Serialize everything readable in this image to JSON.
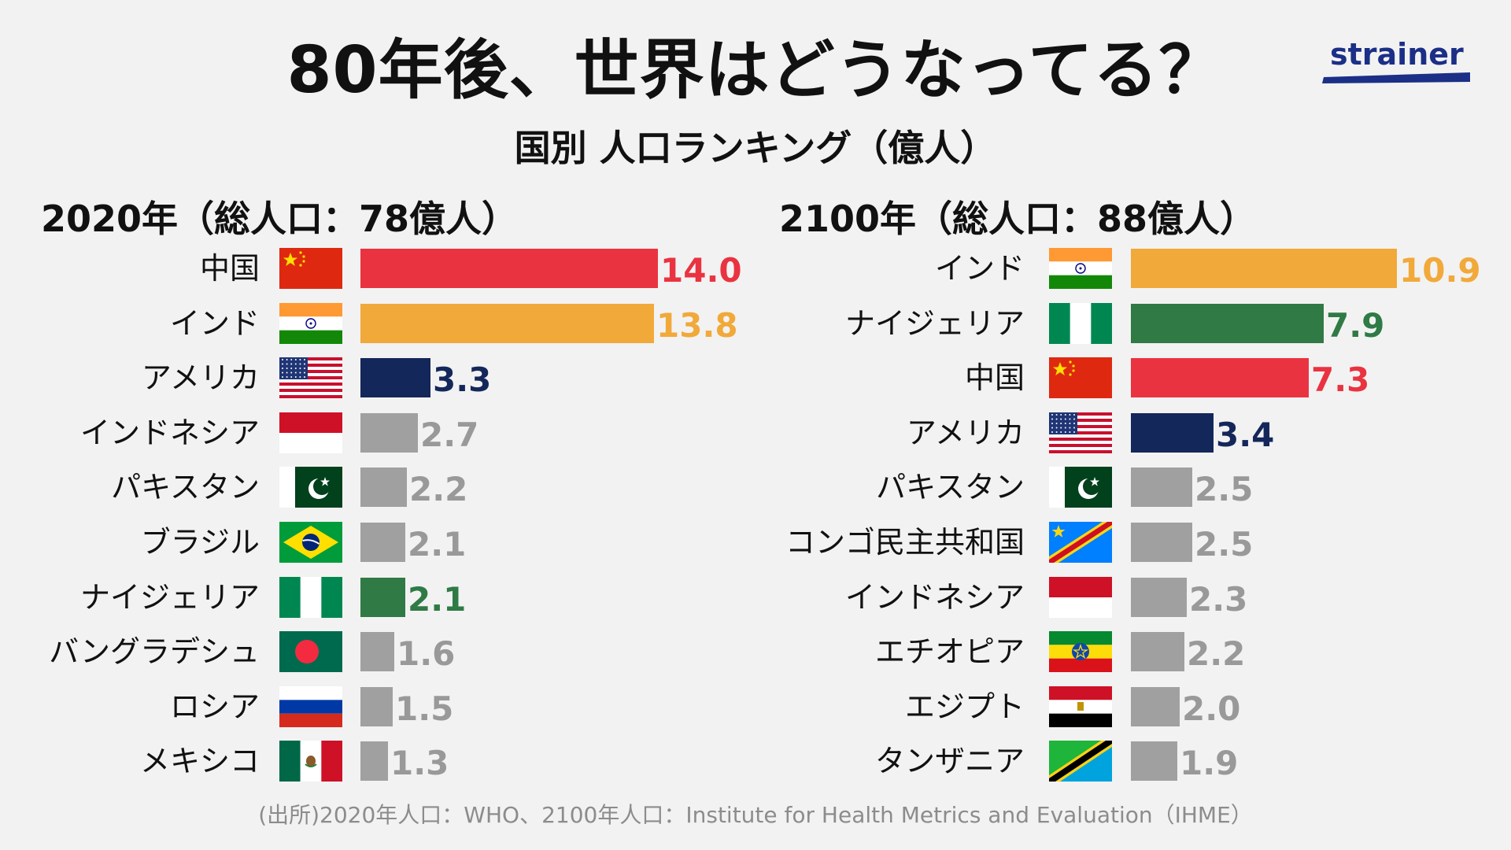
{
  "title": "80年後、世界はどうなってる？",
  "subtitle": "国別 人口ランキング（億人）",
  "logo": "strainer",
  "source": "(出所)2020年人口：WHO、2100年人口：Institute for Health Metrics and Evaluation（IHME）",
  "colors": {
    "china": "#ea3340",
    "india": "#f1a93a",
    "usa": "#14275a",
    "nigeria": "#2f7a45",
    "gray": "#a0a0a0",
    "value_gray": "#999999",
    "brand": "#1b2f87"
  },
  "chart_data": [
    {
      "type": "bar",
      "orientation": "horizontal",
      "title": "2020年（総人口：78億人）",
      "unit": "億人",
      "xlim": [
        0,
        14.0
      ],
      "categories": [
        "中国",
        "インド",
        "アメリカ",
        "インドネシア",
        "パキスタン",
        "ブラジル",
        "ナイジェリア",
        "バングラデシュ",
        "ロシア",
        "メキシコ"
      ],
      "labels": [
        "14.0",
        "13.8",
        "3.3",
        "2.7",
        "2.2",
        "2.1",
        "2.1",
        "1.6",
        "1.5",
        "1.3"
      ],
      "values": [
        14.0,
        13.8,
        3.3,
        2.7,
        2.2,
        2.1,
        2.1,
        1.6,
        1.5,
        1.3
      ],
      "flags": [
        "china-flag-icon",
        "india-flag-icon",
        "usa-flag-icon",
        "indonesia-flag-icon",
        "pakistan-flag-icon",
        "brazil-flag-icon",
        "nigeria-flag-icon",
        "bangladesh-flag-icon",
        "russia-flag-icon",
        "mexico-flag-icon"
      ],
      "bar_colors": [
        "#ea3340",
        "#f1a93a",
        "#14275a",
        "#a0a0a0",
        "#a0a0a0",
        "#a0a0a0",
        "#2f7a45",
        "#a0a0a0",
        "#a0a0a0",
        "#a0a0a0"
      ],
      "label_colors": [
        "#ea3340",
        "#f1a93a",
        "#14275a",
        "#999999",
        "#999999",
        "#999999",
        "#2f7a45",
        "#999999",
        "#999999",
        "#999999"
      ]
    },
    {
      "type": "bar",
      "orientation": "horizontal",
      "title": "2100年（総人口：88億人）",
      "unit": "億人",
      "xlim": [
        0,
        10.9
      ],
      "categories": [
        "インド",
        "ナイジェリア",
        "中国",
        "アメリカ",
        "パキスタン",
        "コンゴ民主共和国",
        "インドネシア",
        "エチオピア",
        "エジプト",
        "タンザニア"
      ],
      "labels": [
        "10.9",
        "7.9",
        "7.3",
        "3.4",
        "2.5",
        "2.5",
        "2.3",
        "2.2",
        "2.0",
        "1.9"
      ],
      "values": [
        10.9,
        7.9,
        7.3,
        3.4,
        2.5,
        2.5,
        2.3,
        2.2,
        2.0,
        1.9
      ],
      "flags": [
        "india-flag-icon",
        "nigeria-flag-icon",
        "china-flag-icon",
        "usa-flag-icon",
        "pakistan-flag-icon",
        "drc-flag-icon",
        "indonesia-flag-icon",
        "ethiopia-flag-icon",
        "egypt-flag-icon",
        "tanzania-flag-icon"
      ],
      "bar_colors": [
        "#f1a93a",
        "#2f7a45",
        "#ea3340",
        "#14275a",
        "#a0a0a0",
        "#a0a0a0",
        "#a0a0a0",
        "#a0a0a0",
        "#a0a0a0",
        "#a0a0a0"
      ],
      "label_colors": [
        "#f1a93a",
        "#2f7a45",
        "#ea3340",
        "#14275a",
        "#999999",
        "#999999",
        "#999999",
        "#999999",
        "#999999",
        "#999999"
      ]
    }
  ]
}
